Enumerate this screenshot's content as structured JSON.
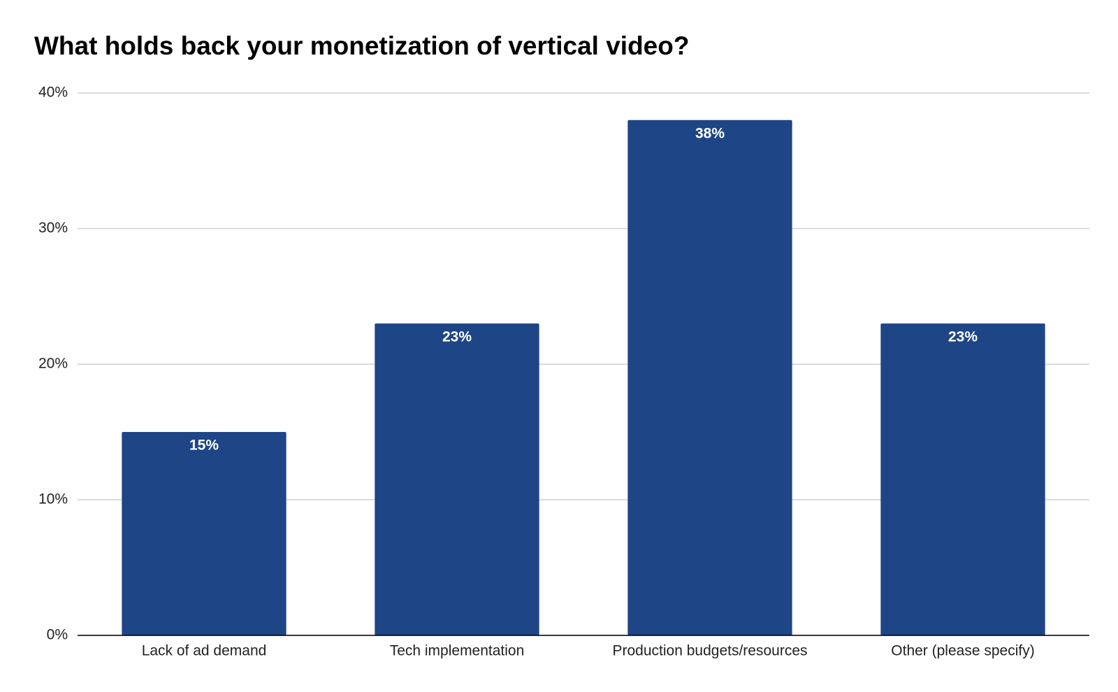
{
  "chart_data": {
    "type": "bar",
    "title": "What holds back your monetization of vertical video?",
    "categories": [
      "Lack of ad demand",
      "Tech implementation",
      "Production budgets/resources",
      "Other (please specify)"
    ],
    "values": [
      15,
      23,
      38,
      23
    ],
    "value_labels": [
      "15%",
      "23%",
      "38%",
      "23%"
    ],
    "color": "#1e4586",
    "ylim": [
      0,
      40
    ],
    "yticks": [
      {
        "value": 0,
        "label": "0%"
      },
      {
        "value": 10,
        "label": "10%"
      },
      {
        "value": 20,
        "label": "20%"
      },
      {
        "value": 30,
        "label": "30%"
      },
      {
        "value": 40,
        "label": "40%"
      }
    ],
    "grid": true
  }
}
